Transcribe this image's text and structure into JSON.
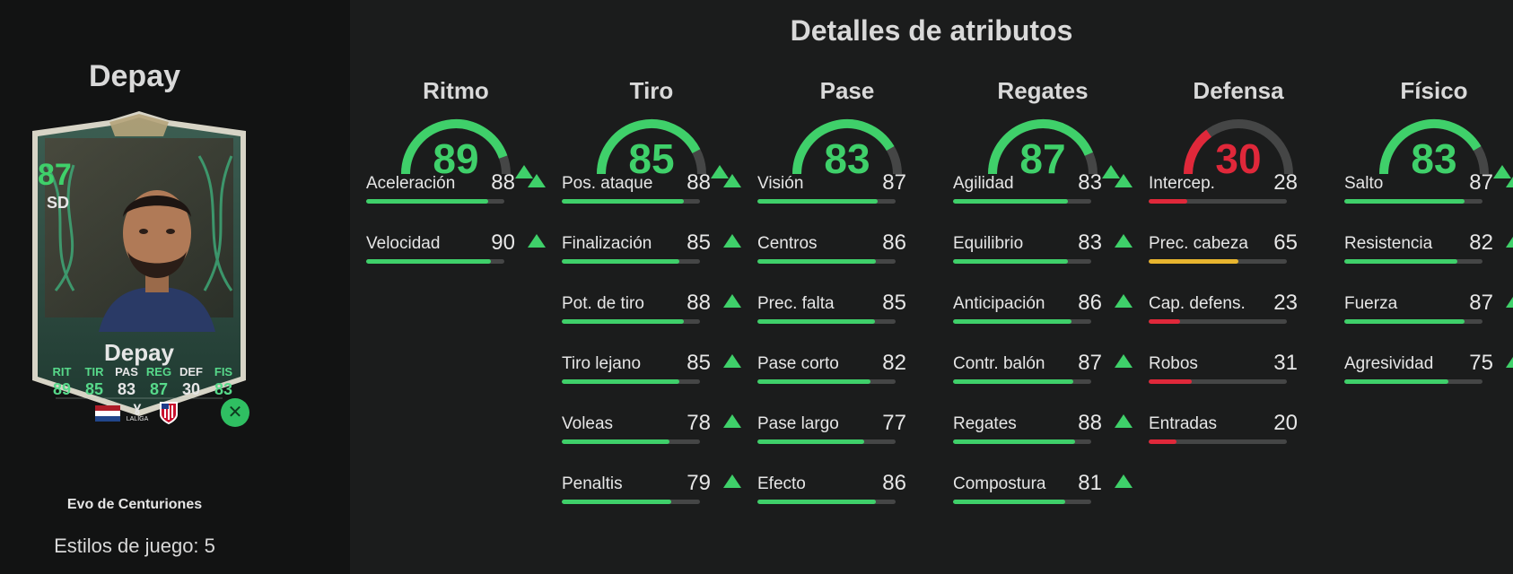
{
  "player": {
    "name": "Depay",
    "card_name": "Depay",
    "rating": "87",
    "position": "SD",
    "evolution": "Evo de Centuriones",
    "playstyles": "Estilos de juego: 5",
    "league_label": "LALIGA",
    "badge_icon": "evolution-badge-icon",
    "card_stats": [
      {
        "label": "RIT",
        "value": "89",
        "up": true
      },
      {
        "label": "TIR",
        "value": "85",
        "up": true
      },
      {
        "label": "PAS",
        "value": "83",
        "up": false
      },
      {
        "label": "REG",
        "value": "87",
        "up": true
      },
      {
        "label": "DEF",
        "value": "30",
        "up": false
      },
      {
        "label": "FIS",
        "value": "83",
        "up": true
      }
    ]
  },
  "title": "Detalles de atributos",
  "colors": {
    "good": "#3fd06a",
    "mid": "#e8b52f",
    "bad": "#e0283a",
    "track": "#454646"
  },
  "categories": [
    {
      "name": "Ritmo",
      "value": 89,
      "up": true,
      "stats": [
        {
          "name": "Aceleración",
          "value": 88,
          "up": true
        },
        {
          "name": "Velocidad",
          "value": 90,
          "up": true
        }
      ]
    },
    {
      "name": "Tiro",
      "value": 85,
      "up": true,
      "stats": [
        {
          "name": "Pos. ataque",
          "value": 88,
          "up": true
        },
        {
          "name": "Finalización",
          "value": 85,
          "up": true
        },
        {
          "name": "Pot. de tiro",
          "value": 88,
          "up": true
        },
        {
          "name": "Tiro lejano",
          "value": 85,
          "up": true
        },
        {
          "name": "Voleas",
          "value": 78,
          "up": true
        },
        {
          "name": "Penaltis",
          "value": 79,
          "up": true
        }
      ]
    },
    {
      "name": "Pase",
      "value": 83,
      "up": false,
      "stats": [
        {
          "name": "Visión",
          "value": 87,
          "up": false
        },
        {
          "name": "Centros",
          "value": 86,
          "up": false
        },
        {
          "name": "Prec. falta",
          "value": 85,
          "up": false
        },
        {
          "name": "Pase corto",
          "value": 82,
          "up": false
        },
        {
          "name": "Pase largo",
          "value": 77,
          "up": false
        },
        {
          "name": "Efecto",
          "value": 86,
          "up": false
        }
      ]
    },
    {
      "name": "Regates",
      "value": 87,
      "up": true,
      "stats": [
        {
          "name": "Agilidad",
          "value": 83,
          "up": true
        },
        {
          "name": "Equilibrio",
          "value": 83,
          "up": true
        },
        {
          "name": "Anticipación",
          "value": 86,
          "up": true
        },
        {
          "name": "Contr. balón",
          "value": 87,
          "up": true
        },
        {
          "name": "Regates",
          "value": 88,
          "up": true
        },
        {
          "name": "Compostura",
          "value": 81,
          "up": true
        }
      ]
    },
    {
      "name": "Defensa",
      "value": 30,
      "up": false,
      "stats": [
        {
          "name": "Intercep.",
          "value": 28,
          "up": false
        },
        {
          "name": "Prec. cabeza",
          "value": 65,
          "up": false
        },
        {
          "name": "Cap. defens.",
          "value": 23,
          "up": false
        },
        {
          "name": "Robos",
          "value": 31,
          "up": false
        },
        {
          "name": "Entradas",
          "value": 20,
          "up": false
        }
      ]
    },
    {
      "name": "Físico",
      "value": 83,
      "up": true,
      "stats": [
        {
          "name": "Salto",
          "value": 87,
          "up": true
        },
        {
          "name": "Resistencia",
          "value": 82,
          "up": true
        },
        {
          "name": "Fuerza",
          "value": 87,
          "up": true
        },
        {
          "name": "Agresividad",
          "value": 75,
          "up": true
        }
      ]
    }
  ]
}
